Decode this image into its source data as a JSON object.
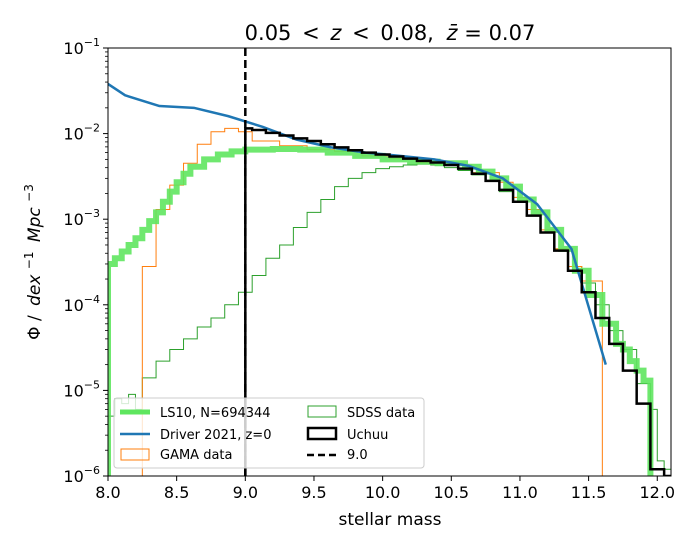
{
  "chart_data": {
    "type": "line",
    "title": {
      "range_left": "0.05",
      "lt": "<",
      "z": "z",
      "range_right": "0.08,",
      "zbar": "z̄",
      "eq": "=",
      "zbar_value": "0.07"
    },
    "xlabel": "stellar mass",
    "ylabel": {
      "phi": "Φ",
      "slash": "/",
      "dex": "dex",
      "dex_exp": "−1",
      "mpc": "Mpc",
      "mpc_exp": "−3"
    },
    "xlim": [
      8.0,
      12.1
    ],
    "ylim_log10": [
      -6,
      -1
    ],
    "yscale": "log",
    "x_ticks": [
      {
        "value": 8.0,
        "label": "8.0"
      },
      {
        "value": 8.5,
        "label": "8.5"
      },
      {
        "value": 9.0,
        "label": "9.0"
      },
      {
        "value": 9.5,
        "label": "9.5"
      },
      {
        "value": 10.0,
        "label": "10.0"
      },
      {
        "value": 10.5,
        "label": "10.5"
      },
      {
        "value": 11.0,
        "label": "11.0"
      },
      {
        "value": 11.5,
        "label": "11.5"
      },
      {
        "value": 12.0,
        "label": "12.0"
      }
    ],
    "y_ticks": [
      {
        "exp": -6,
        "base": "10",
        "exp_label": "−6"
      },
      {
        "exp": -5,
        "base": "10",
        "exp_label": "−5"
      },
      {
        "exp": -4,
        "base": "10",
        "exp_label": "−4"
      },
      {
        "exp": -3,
        "base": "10",
        "exp_label": "−3"
      },
      {
        "exp": -2,
        "base": "10",
        "exp_label": "−2"
      },
      {
        "exp": -1,
        "base": "10",
        "exp_label": "−1"
      }
    ],
    "series": [
      {
        "name": "LS10, N=694344",
        "kind": "step",
        "color": "#5fe65f",
        "x": [
          8.0,
          8.05,
          8.1,
          8.15,
          8.2,
          8.25,
          8.3,
          8.35,
          8.4,
          8.45,
          8.5,
          8.55,
          8.6,
          8.7,
          8.8,
          8.9,
          9.0,
          9.2,
          9.4,
          9.6,
          9.8,
          10.0,
          10.2,
          10.4,
          10.6,
          10.7,
          10.8,
          10.9,
          11.0,
          11.1,
          11.2,
          11.3,
          11.4,
          11.5,
          11.6,
          11.7,
          11.75,
          11.8,
          11.85,
          11.9
        ],
        "y": [
          0.0003,
          0.00035,
          0.00042,
          0.0005,
          0.0006,
          0.00075,
          0.00095,
          0.0012,
          0.0016,
          0.0021,
          0.0027,
          0.0034,
          0.0041,
          0.005,
          0.0057,
          0.0062,
          0.0065,
          0.0066,
          0.0065,
          0.006,
          0.0055,
          0.005,
          0.0047,
          0.0045,
          0.0041,
          0.0036,
          0.003,
          0.0024,
          0.0017,
          0.0012,
          0.00075,
          0.00045,
          0.00025,
          0.00013,
          6e-05,
          3.5e-05,
          3e-05,
          2.2e-05,
          1.7e-05,
          1.3e-05
        ]
      },
      {
        "name": "Driver 2021, z=0",
        "kind": "line",
        "color": "#1f77b4",
        "x": [
          8.0,
          8.125,
          8.375,
          8.625,
          8.875,
          9.125,
          9.375,
          9.625,
          9.875,
          10.125,
          10.375,
          10.625,
          10.875,
          11.125,
          11.375,
          11.625
        ],
        "y": [
          0.038,
          0.028,
          0.021,
          0.02,
          0.016,
          0.012,
          0.0085,
          0.0069,
          0.006,
          0.0055,
          0.005,
          0.0042,
          0.003,
          0.0015,
          0.00045,
          2e-05
        ]
      },
      {
        "name": "GAMA data",
        "kind": "step",
        "color": "#ff7f0e",
        "x": [
          8.0,
          8.25,
          8.35,
          8.45,
          8.55,
          8.65,
          8.75,
          8.85,
          8.95,
          9.05,
          9.25,
          9.45,
          9.65,
          9.85,
          10.05,
          10.25,
          10.45,
          10.65,
          10.85,
          10.95,
          11.05,
          11.15,
          11.25,
          11.35,
          11.45,
          11.55,
          11.6
        ],
        "y": [
          1e-07,
          0.00028,
          0.0013,
          0.0025,
          0.0045,
          0.0075,
          0.0105,
          0.0115,
          0.0105,
          0.0082,
          0.0072,
          0.0065,
          0.0062,
          0.0055,
          0.0051,
          0.0046,
          0.0043,
          0.0035,
          0.0027,
          0.0018,
          0.0013,
          0.00075,
          0.00045,
          0.00028,
          0.00019,
          0.00019,
          1e-06
        ]
      },
      {
        "name": "SDSS data",
        "kind": "step",
        "color": "#2ca02c",
        "x": [
          8.0,
          8.05,
          8.1,
          8.15,
          8.2,
          8.25,
          8.35,
          8.45,
          8.55,
          8.65,
          8.75,
          8.85,
          8.95,
          9.05,
          9.15,
          9.25,
          9.35,
          9.45,
          9.55,
          9.65,
          9.75,
          9.85,
          9.95,
          10.05,
          10.15,
          10.25,
          10.35,
          10.45,
          10.55,
          10.65,
          10.75,
          10.85,
          10.95,
          11.05,
          11.15,
          11.25,
          11.35,
          11.45,
          11.55,
          11.65,
          11.75,
          11.85,
          11.95,
          12.0,
          12.05
        ],
        "y": [
          5e-06,
          8e-06,
          7e-06,
          9e-06,
          6e-06,
          1.4e-05,
          2.2e-05,
          3e-05,
          4e-05,
          5.5e-05,
          7e-05,
          0.0001,
          0.00014,
          0.00022,
          0.00035,
          0.0005,
          0.0008,
          0.0012,
          0.0017,
          0.0024,
          0.003,
          0.0035,
          0.0039,
          0.0041,
          0.0043,
          0.0044,
          0.0043,
          0.004,
          0.0037,
          0.0033,
          0.0028,
          0.0021,
          0.0016,
          0.0011,
          0.0007,
          0.00045,
          0.00028,
          0.00018,
          0.0001,
          5e-05,
          3e-05,
          1.2e-05,
          6e-06,
          1.5e-06,
          1.2e-06
        ]
      },
      {
        "name": "Uchuu",
        "kind": "step",
        "color": "#000000",
        "x": [
          9.0,
          9.05,
          9.15,
          9.25,
          9.35,
          9.45,
          9.55,
          9.65,
          9.75,
          9.85,
          9.95,
          10.05,
          10.15,
          10.25,
          10.35,
          10.45,
          10.55,
          10.65,
          10.75,
          10.85,
          10.95,
          11.05,
          11.15,
          11.25,
          11.35,
          11.45,
          11.55,
          11.65,
          11.75,
          11.85,
          11.95,
          12.05
        ],
        "y": [
          0.0115,
          0.011,
          0.0102,
          0.0095,
          0.0088,
          0.0082,
          0.0075,
          0.0069,
          0.0064,
          0.006,
          0.0057,
          0.0054,
          0.0051,
          0.0048,
          0.0046,
          0.0043,
          0.0039,
          0.0034,
          0.0028,
          0.0022,
          0.0016,
          0.0011,
          0.0007,
          0.00043,
          0.00025,
          0.00014,
          7e-05,
          3.5e-05,
          1.7e-05,
          7e-06,
          1.2e-06,
          1e-06
        ]
      },
      {
        "name": "9.0",
        "kind": "vline",
        "color": "#000000",
        "x": [
          9.0
        ]
      }
    ],
    "legend": {
      "placement": "lower-left",
      "columns": 2,
      "entries": [
        {
          "label": "LS10, N=694344",
          "style": "thick",
          "color": "#5fe65f"
        },
        {
          "label": "SDSS data",
          "style": "box",
          "color": "#2ca02c"
        },
        {
          "label": "Driver 2021, z=0",
          "style": "line",
          "color": "#1f77b4"
        },
        {
          "label": "Uchuu",
          "style": "box-thick",
          "color": "#000000"
        },
        {
          "label": "GAMA data",
          "style": "box",
          "color": "#ff7f0e"
        },
        {
          "label": "9.0",
          "style": "dashed",
          "color": "#000000"
        }
      ]
    }
  }
}
